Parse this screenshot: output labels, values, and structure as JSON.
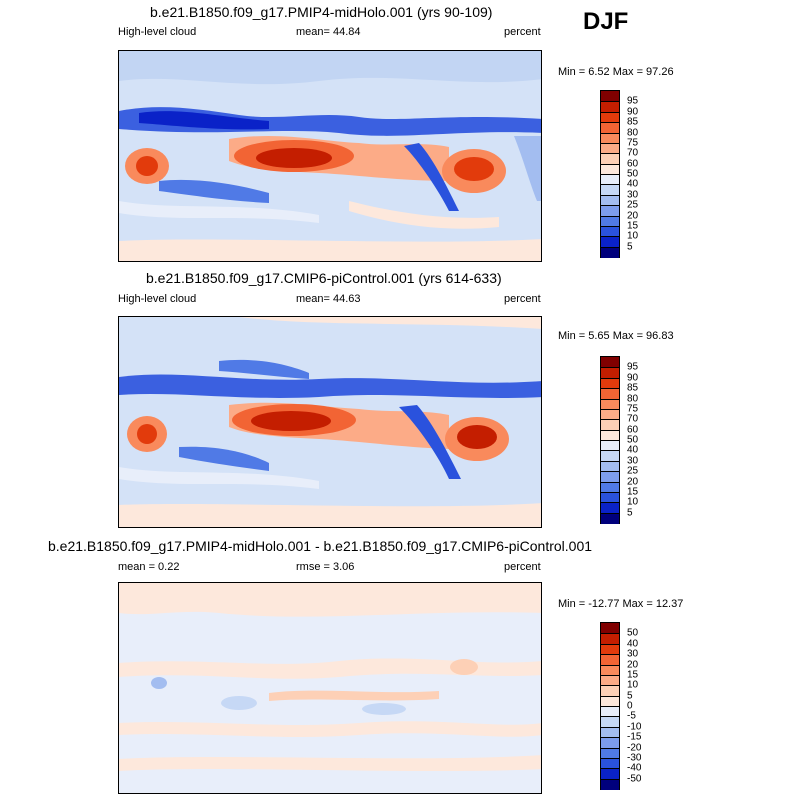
{
  "season": "DJF",
  "panels": [
    {
      "title": "b.e21.B1850.f09_g17.PMIP4-midHolo.001 (yrs 90-109)",
      "left_label": "High-level cloud",
      "center_label": "mean=  44.84",
      "units": "percent",
      "minmax": "Min =   6.52 Max =  97.26",
      "colorbar_labels": [
        "95",
        "90",
        "85",
        "80",
        "75",
        "70",
        "60",
        "50",
        "40",
        "30",
        "25",
        "20",
        "15",
        "10",
        "5"
      ],
      "colorbar_colors": [
        "#800000",
        "#c41e00",
        "#e23b0c",
        "#f26434",
        "#f98a5c",
        "#fcab87",
        "#fdd0b6",
        "#fde8dc",
        "#e8eefa",
        "#c6d8f5",
        "#a3bdf0",
        "#7d9ded",
        "#507ae6",
        "#2a52dd",
        "#0a22c8",
        "#00007c"
      ]
    },
    {
      "title": "b.e21.B1850.f09_g17.CMIP6-piControl.001 (yrs 614-633)",
      "left_label": "High-level cloud",
      "center_label": "mean=  44.63",
      "units": "percent",
      "minmax": "Min =   5.65 Max =  96.83",
      "colorbar_labels": [
        "95",
        "90",
        "85",
        "80",
        "75",
        "70",
        "60",
        "50",
        "40",
        "30",
        "25",
        "20",
        "15",
        "10",
        "5"
      ],
      "colorbar_colors": [
        "#800000",
        "#c41e00",
        "#e23b0c",
        "#f26434",
        "#f98a5c",
        "#fcab87",
        "#fdd0b6",
        "#fde8dc",
        "#e8eefa",
        "#c6d8f5",
        "#a3bdf0",
        "#7d9ded",
        "#507ae6",
        "#2a52dd",
        "#0a22c8",
        "#00007c"
      ]
    },
    {
      "title": "b.e21.B1850.f09_g17.PMIP4-midHolo.001 - b.e21.B1850.f09_g17.CMIP6-piControl.001",
      "left_label": "mean =   0.22",
      "center_label": "rmse =   3.06",
      "units": "percent",
      "minmax": "Min = -12.77 Max =  12.37",
      "colorbar_labels": [
        "50",
        "40",
        "30",
        "20",
        "15",
        "10",
        "5",
        "0",
        "-5",
        "-10",
        "-15",
        "-20",
        "-30",
        "-40",
        "-50"
      ],
      "colorbar_colors": [
        "#800000",
        "#c41e00",
        "#e23b0c",
        "#f26434",
        "#f98a5c",
        "#fcab87",
        "#fdd0b6",
        "#fde8dc",
        "#e8eefa",
        "#c6d8f5",
        "#a3bdf0",
        "#7d9ded",
        "#507ae6",
        "#2a52dd",
        "#0a22c8",
        "#00007c"
      ]
    }
  ]
}
